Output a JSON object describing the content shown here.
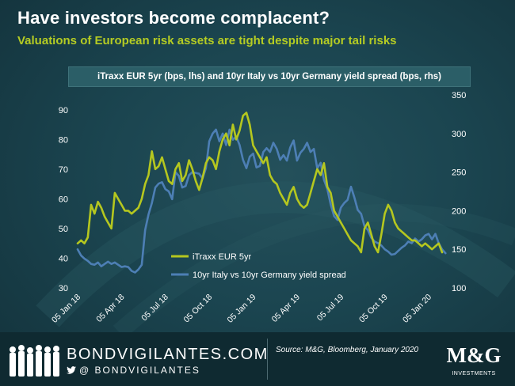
{
  "header": {
    "title": "Have investors become complacent?",
    "subtitle": "Valuations of European risk assets are tight despite major tail risks"
  },
  "colors": {
    "itraxx": "#b5c71f",
    "spread": "#4d7fb5",
    "axis_text": "#ffffff"
  },
  "chart_data": {
    "type": "line",
    "title": "iTraxx EUR 5yr (bps, lhs) and 10yr Italy vs 10yr Germany yield spread (bps, rhs)",
    "x_tick_labels": [
      "05 Jan 18",
      "05 Apr 18",
      "05 Jul 18",
      "05 Oct 18",
      "05 Jan 19",
      "05 Apr 19",
      "05 Jul 19",
      "05 Oct 19",
      "05 Jan 20"
    ],
    "x_tick_index": [
      0,
      13,
      26,
      39,
      52,
      65,
      78,
      91,
      104
    ],
    "ylim_left": [
      30,
      95
    ],
    "yticks_left": [
      30,
      40,
      50,
      60,
      70,
      80,
      90
    ],
    "ylim_right": [
      100,
      350
    ],
    "yticks_right": [
      100,
      150,
      200,
      250,
      300,
      350
    ],
    "legend_position": "bottom-center",
    "series": [
      {
        "name": "iTraxx EUR 5yr",
        "axis": "left",
        "values": [
          45,
          46,
          45,
          47,
          58,
          55,
          59,
          57,
          54,
          52,
          50,
          62,
          60,
          58,
          56,
          56,
          55,
          56,
          57,
          60,
          65,
          68,
          76,
          70,
          71,
          74,
          70,
          66,
          65,
          70,
          72,
          66,
          68,
          73,
          70,
          66,
          63,
          67,
          72,
          74,
          73,
          70,
          76,
          80,
          82,
          78,
          85,
          80,
          83,
          88,
          89,
          85,
          78,
          76,
          74,
          72,
          74,
          68,
          66,
          65,
          62,
          60,
          58,
          62,
          64,
          60,
          58,
          57,
          58,
          62,
          66,
          70,
          68,
          72,
          64,
          62,
          56,
          54,
          52,
          50,
          48,
          46,
          45,
          44,
          42,
          50,
          52,
          48,
          44,
          42,
          48,
          55,
          58,
          56,
          52,
          50,
          49,
          48,
          47,
          46,
          46,
          45,
          44,
          45,
          44,
          43,
          44,
          45,
          42
        ]
      },
      {
        "name": "10yr Italy vs 10yr Germany yield spread",
        "axis": "right",
        "values": [
          150,
          142,
          138,
          135,
          131,
          130,
          133,
          128,
          131,
          134,
          131,
          133,
          130,
          127,
          128,
          127,
          122,
          120,
          124,
          130,
          175,
          195,
          210,
          230,
          235,
          237,
          228,
          225,
          215,
          250,
          245,
          230,
          232,
          246,
          250,
          249,
          248,
          242,
          255,
          290,
          300,
          305,
          290,
          300,
          285,
          305,
          292,
          296,
          285,
          266,
          255,
          270,
          274,
          256,
          258,
          276,
          281,
          276,
          288,
          280,
          266,
          272,
          265,
          282,
          291,
          265,
          275,
          280,
          288,
          276,
          280,
          255,
          262,
          240,
          228,
          208,
          193,
          188,
          204,
          210,
          214,
          231,
          217,
          201,
          196,
          180,
          175,
          165,
          160,
          158,
          155,
          150,
          147,
          143,
          144,
          148,
          152,
          155,
          160,
          158,
          164,
          160,
          163,
          168,
          170,
          163,
          170,
          158,
          150,
          145
        ]
      }
    ]
  },
  "footer": {
    "brand": "BONDVIGILANTES.COM",
    "social": "@ BONDVIGILANTES",
    "source": "Source: M&G, Bloomberg, January 2020",
    "logo_text": "M&G",
    "logo_subtext": "INVESTMENTS"
  }
}
